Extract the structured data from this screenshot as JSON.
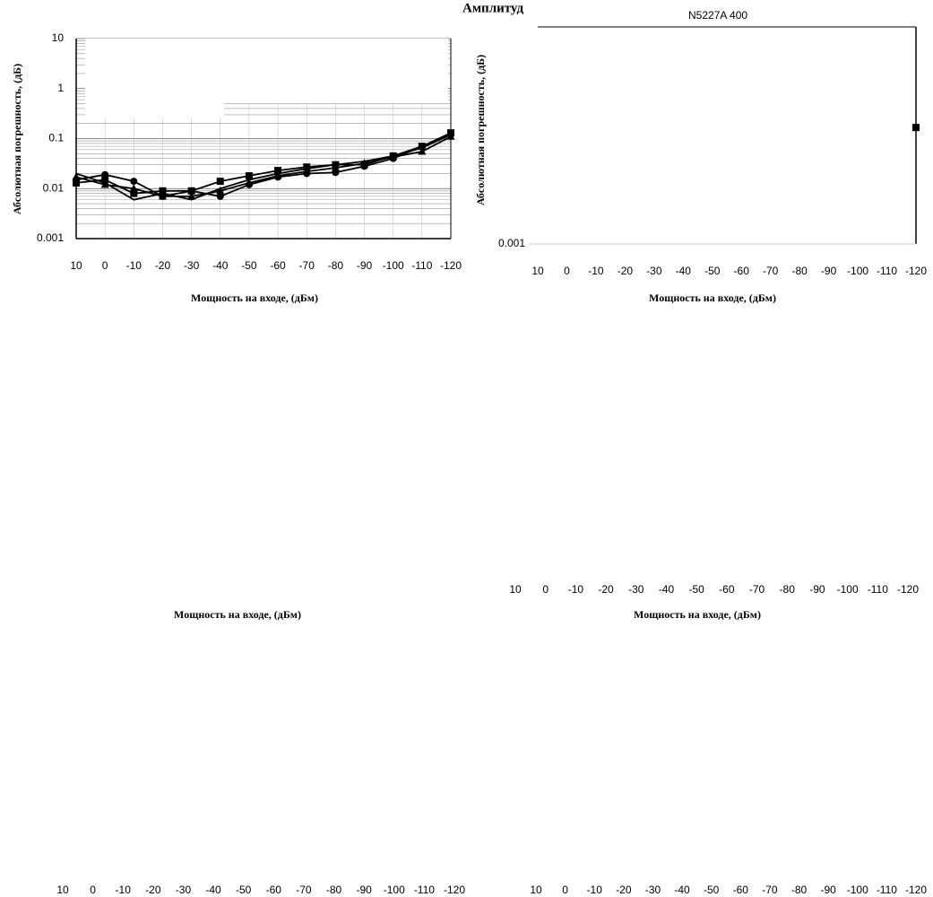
{
  "chart_data": [
    {
      "type": "line",
      "title": "Амплитуд",
      "ylabel": "Абсолютная погрешность,  (дБ)",
      "xlabel": "Мощность на входе, (дБм)",
      "categories": [
        "10",
        "0",
        "-10",
        "-20",
        "-30",
        "-40",
        "-50",
        "-60",
        "-70",
        "-80",
        "-90",
        "-100",
        "-110",
        "-120"
      ],
      "log_scale": true,
      "grid": true,
      "ylim": [
        0.001,
        10
      ],
      "yticks": [
        0.001,
        0.01,
        0.1,
        1,
        10
      ],
      "series": [
        {
          "color": "#000000",
          "marker": "square",
          "values": [
            0.013,
            0.015,
            0.008,
            0.009,
            0.009,
            0.014,
            0.018,
            0.023,
            0.027,
            0.03,
            0.03,
            0.045,
            0.07,
            0.13
          ]
        },
        {
          "color": "#000000",
          "marker": "circle",
          "values": [
            0.015,
            0.019,
            0.014,
            0.007,
            0.009,
            0.007,
            0.012,
            0.017,
            0.02,
            0.021,
            0.028,
            0.04,
            0.07,
            0.12
          ]
        },
        {
          "color": "#000000",
          "marker": "triangle",
          "values": [
            0.017,
            0.012,
            0.01,
            0.007,
            0.007,
            0.009,
            0.013,
            0.018,
            0.022,
            0.026,
            0.032,
            0.043,
            0.055,
            0.11
          ]
        },
        {
          "color": "#000000",
          "marker": "none",
          "values": [
            0.02,
            0.013,
            0.006,
            0.008,
            0.006,
            0.01,
            0.015,
            0.02,
            0.025,
            0.03,
            0.035,
            0.045,
            0.065,
            0.12
          ]
        }
      ]
    },
    {
      "type": "line",
      "title": "N5227A 400",
      "ylabel": "Абсолютная погрешность,  (дБ)",
      "xlabel": "Мощность на входе, (дБм)",
      "categories": [
        "10",
        "0",
        "-10",
        "-20",
        "-30",
        "-40",
        "-50",
        "-60",
        "-70",
        "-80",
        "-90",
        "-100",
        "-110",
        "-120"
      ],
      "log_scale": true,
      "grid": false,
      "ylim": [
        0.001,
        10
      ],
      "yticks": [
        0.001
      ],
      "series": [
        {
          "color": "#000000",
          "marker": "square",
          "values": [
            null,
            null,
            null,
            null,
            null,
            null,
            null,
            null,
            null,
            null,
            null,
            null,
            null,
            0.14
          ]
        }
      ]
    },
    {
      "type": "line",
      "xlabel": "Мощность на входе, (дБм)"
    },
    {
      "type": "line",
      "xlabel": "Мощность на входе, (дБм)",
      "categories": [
        "10",
        "0",
        "-10",
        "-20",
        "-30",
        "-40",
        "-50",
        "-60",
        "-70",
        "-80",
        "-90",
        "-100",
        "-110",
        "-120"
      ]
    },
    {
      "type": "line",
      "categories": [
        "10",
        "0",
        "-10",
        "-20",
        "-30",
        "-40",
        "-50",
        "-60",
        "-70",
        "-80",
        "-90",
        "-100",
        "-110",
        "-120"
      ]
    },
    {
      "type": "line",
      "categories": [
        "10",
        "0",
        "-10",
        "-20",
        "-30",
        "-40",
        "-50",
        "-60",
        "-70",
        "-80",
        "-90",
        "-100",
        "-110",
        "-120"
      ]
    }
  ]
}
